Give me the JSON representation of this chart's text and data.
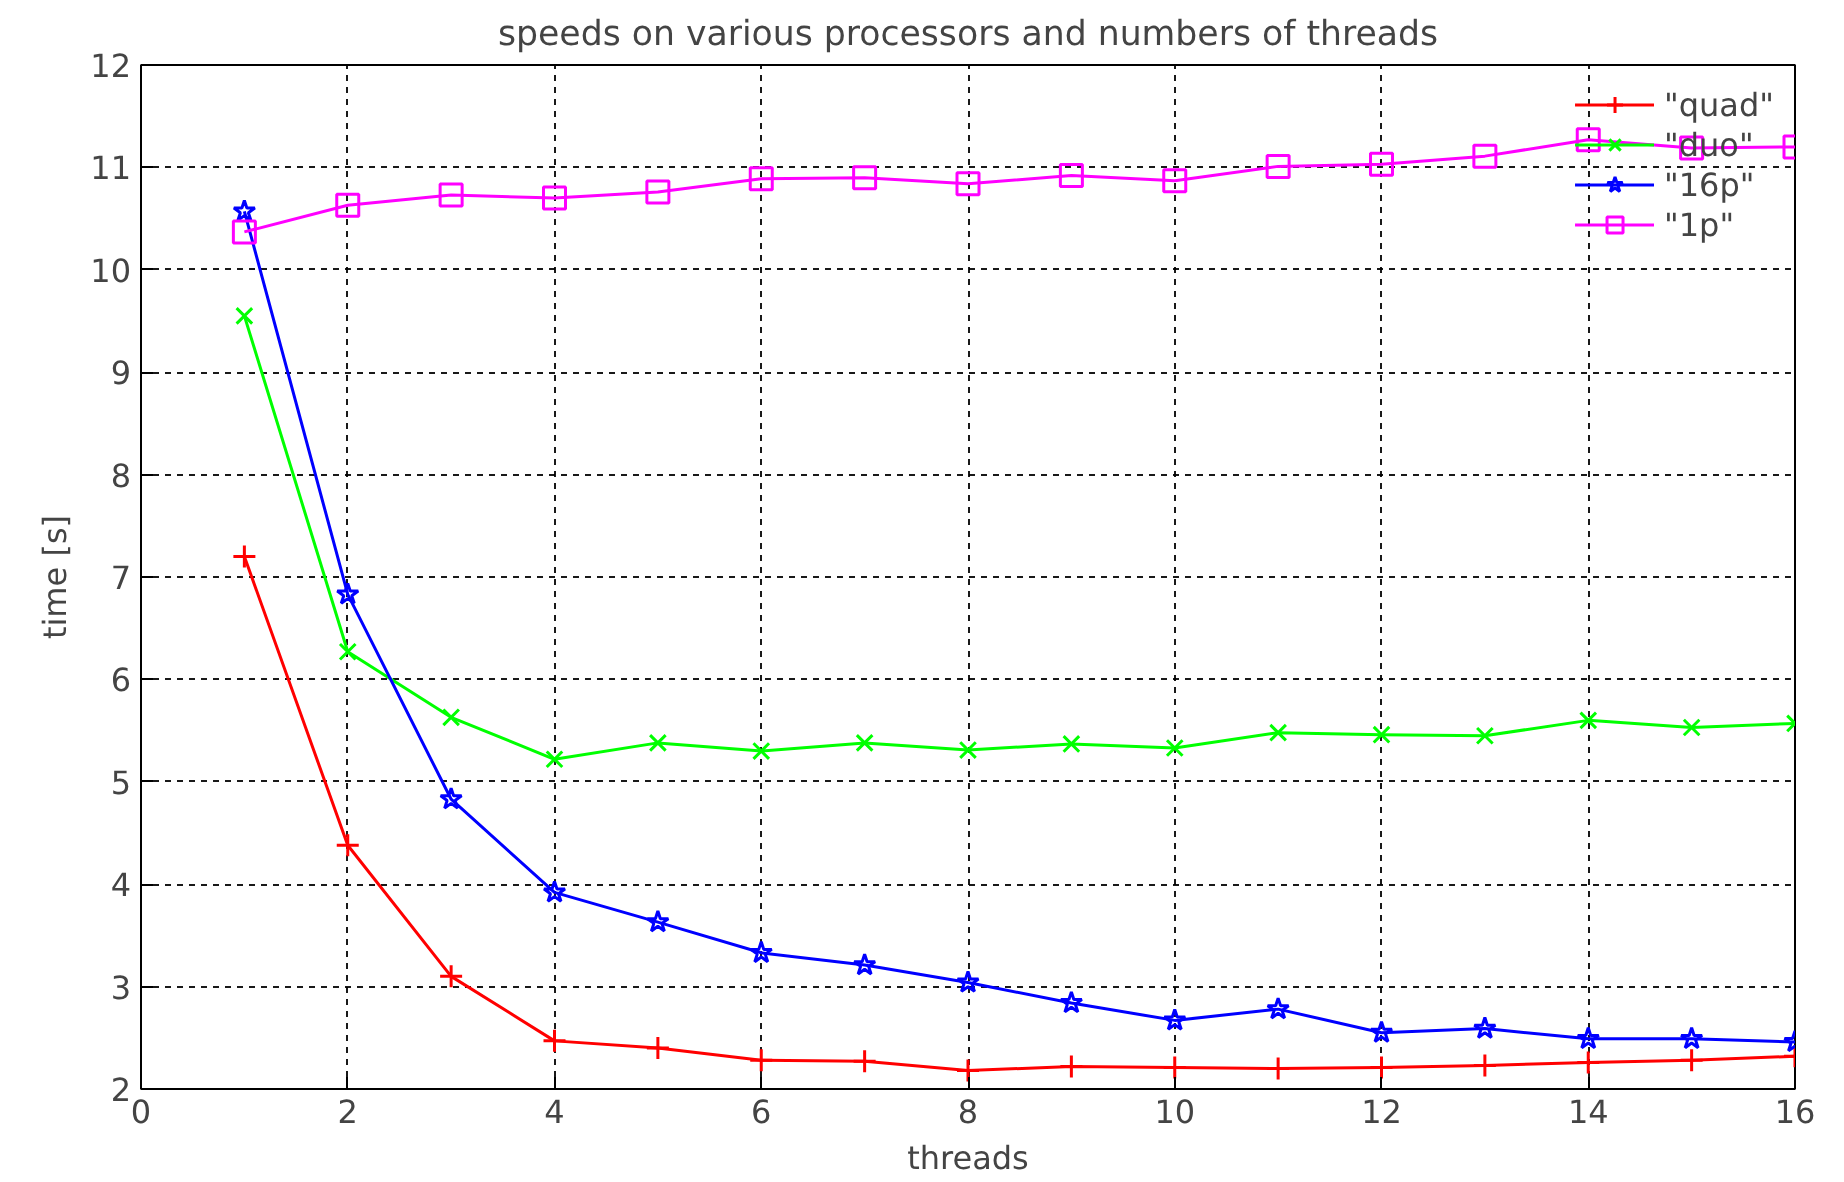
{
  "chart_data": {
    "type": "line",
    "title": "speeds on various processors and numbers of threads",
    "xlabel": "threads",
    "ylabel": "time [s]",
    "x": [
      1,
      2,
      3,
      4,
      5,
      6,
      7,
      8,
      9,
      10,
      11,
      12,
      13,
      14,
      15,
      16
    ],
    "series": [
      {
        "name": "\"quad\"",
        "color": "#ff0000",
        "marker": "cross",
        "values": [
          7.2,
          4.38,
          3.1,
          2.47,
          2.4,
          2.28,
          2.27,
          2.18,
          2.22,
          2.21,
          2.2,
          2.21,
          2.23,
          2.26,
          2.28,
          2.32
        ]
      },
      {
        "name": "\"duo\"",
        "color": "#00ff00",
        "marker": "x",
        "values": [
          9.55,
          6.27,
          5.63,
          5.22,
          5.38,
          5.3,
          5.38,
          5.31,
          5.37,
          5.33,
          5.48,
          5.46,
          5.45,
          5.6,
          5.53,
          5.57
        ]
      },
      {
        "name": "\"16p\"",
        "color": "#0000ff",
        "marker": "star",
        "values": [
          10.57,
          6.83,
          4.83,
          3.92,
          3.63,
          3.33,
          3.21,
          3.04,
          2.84,
          2.67,
          2.78,
          2.55,
          2.59,
          2.49,
          2.49,
          2.46
        ]
      },
      {
        "name": "\"1p\"",
        "color": "#ff00ff",
        "marker": "square",
        "values": [
          10.37,
          10.63,
          10.73,
          10.7,
          10.76,
          10.89,
          10.9,
          10.84,
          10.92,
          10.87,
          11.01,
          11.03,
          11.11,
          11.27,
          11.19,
          11.2
        ]
      }
    ],
    "xlim": [
      0,
      16
    ],
    "ylim": [
      2,
      12
    ],
    "xticks": [
      0,
      2,
      4,
      6,
      8,
      10,
      12,
      14,
      16
    ],
    "yticks": [
      2,
      3,
      4,
      5,
      6,
      7,
      8,
      9,
      10,
      11,
      12
    ],
    "grid": true,
    "legend": "top right",
    "line_style": "solid"
  }
}
